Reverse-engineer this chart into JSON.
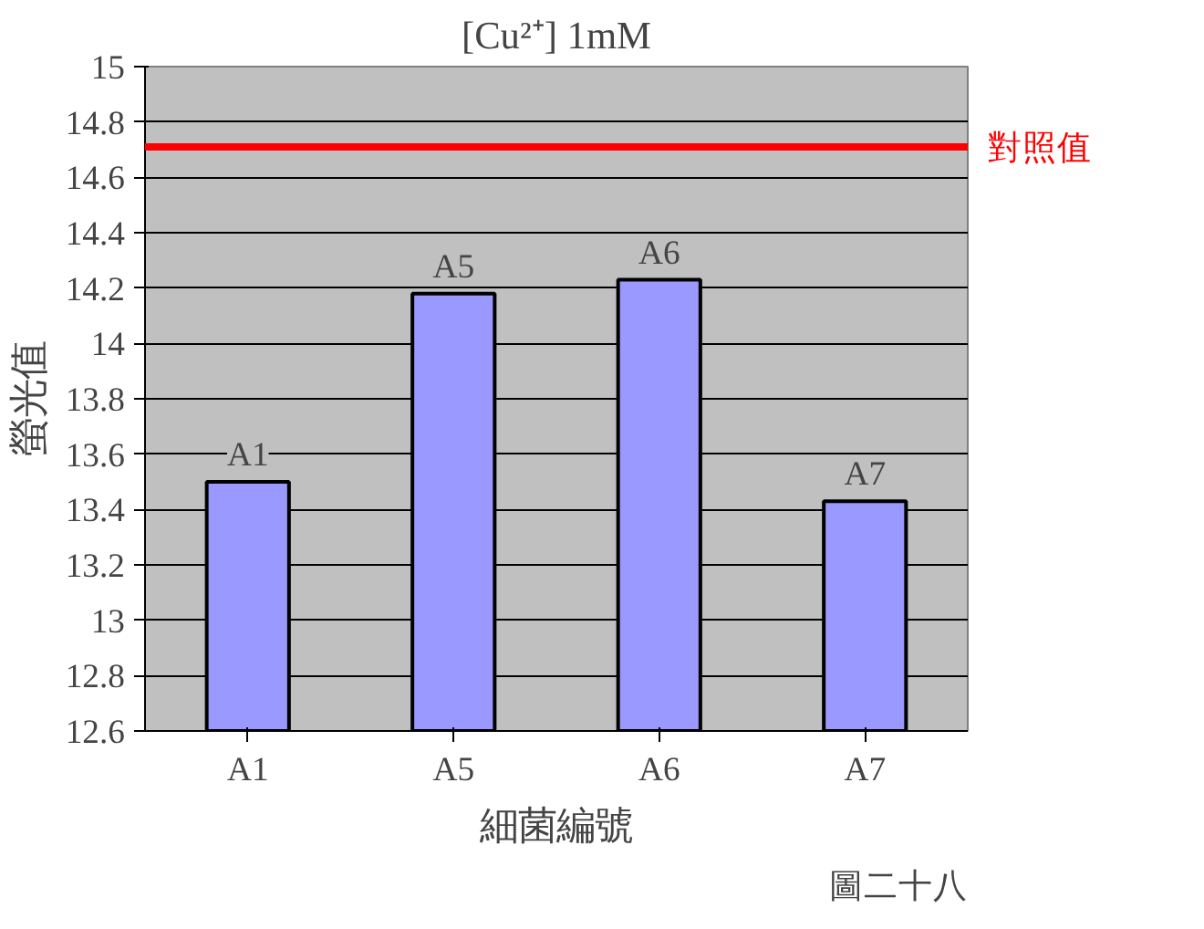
{
  "chart_data": {
    "type": "bar",
    "title": "[Cu²⁺] 1mM",
    "xlabel": "細菌編號",
    "ylabel": "螢光值",
    "categories": [
      "A1",
      "A5",
      "A6",
      "A7"
    ],
    "values": [
      13.5,
      14.18,
      14.23,
      13.43
    ],
    "color": "#9999ff",
    "ylim": [
      12.6,
      15
    ],
    "yticks": [
      12.6,
      12.8,
      13,
      13.2,
      13.4,
      13.6,
      13.8,
      14,
      14.2,
      14.4,
      14.6,
      14.8,
      15
    ],
    "grid": "y",
    "ref_lines": [
      {
        "axis": "y",
        "value": 14.71,
        "label": "對照值",
        "color": "#ff0000"
      }
    ],
    "annotations": [
      {
        "text": "A1",
        "x": "A1",
        "y": 13.5
      },
      {
        "text": "A5",
        "x": "A5",
        "y": 14.18
      },
      {
        "text": "A6",
        "x": "A6",
        "y": 14.23
      },
      {
        "text": "A7",
        "x": "A7",
        "y": 13.43
      },
      "圖二十八"
    ]
  }
}
